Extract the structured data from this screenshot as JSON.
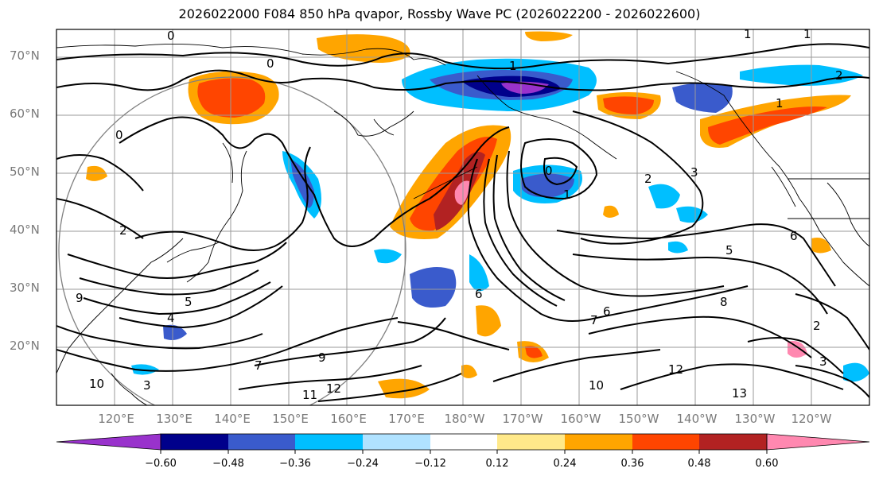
{
  "title": "2026022000 F084 850 hPa qvapor, Rossby Wave PC (2026022200 - 2026022600)",
  "lat_labels": [
    "70°N",
    "60°N",
    "50°N",
    "40°N",
    "30°N",
    "20°N"
  ],
  "lon_labels": [
    "120°E",
    "130°E",
    "140°E",
    "150°E",
    "160°E",
    "170°E",
    "180°W",
    "170°W",
    "160°W",
    "150°W",
    "140°W",
    "130°W",
    "120°W"
  ],
  "colorbar": {
    "ticks": [
      "−0.60",
      "−0.48",
      "−0.36",
      "−0.24",
      "−0.12",
      "0.12",
      "0.24",
      "0.36",
      "0.48",
      "0.60"
    ],
    "colors": [
      "#9932cc",
      "#00008b",
      "#3a5bcc",
      "#00bfff",
      "#b0e2ff",
      "#ffffff",
      "#ffe98a",
      "#ffa500",
      "#ff4500",
      "#b22222",
      "#ff88b0"
    ]
  },
  "contour_labels": [
    "0",
    "0",
    "0",
    "0",
    "1",
    "1",
    "1",
    "1",
    "1",
    "2",
    "2",
    "2",
    "2",
    "3",
    "3",
    "3",
    "4",
    "5",
    "5",
    "6",
    "6",
    "6",
    "7",
    "7",
    "8",
    "9",
    "9",
    "10",
    "10",
    "11",
    "12",
    "12",
    "13"
  ]
}
